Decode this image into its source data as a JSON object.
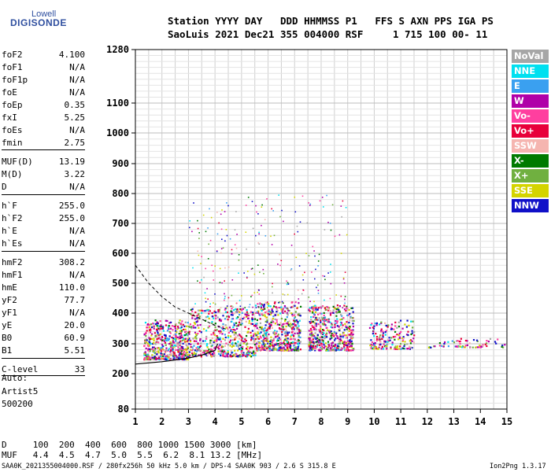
{
  "logo": {
    "line1": "Lowell",
    "line2": "DIGISONDE"
  },
  "header": {
    "row1": "Station YYYY DAY   DDD HHMMSS P1   FFS S AXN PPS IGA PS",
    "row2": "SaoLuis 2021 Dec21 355 004000 RSF     1 715 100 00- 11"
  },
  "params": [
    {
      "key": "foF2",
      "value": "4.100"
    },
    {
      "key": "foF1",
      "value": "N/A"
    },
    {
      "key": "foF1p",
      "value": "N/A"
    },
    {
      "key": "foE",
      "value": "N/A"
    },
    {
      "key": "foEp",
      "value": "0.35"
    },
    {
      "key": "fxI",
      "value": "5.25"
    },
    {
      "key": "foEs",
      "value": "N/A"
    },
    {
      "key": "fmin",
      "value": "2.75"
    },
    {
      "key": "MUF(D)",
      "value": "13.19"
    },
    {
      "key": "M(D)",
      "value": "3.22"
    },
    {
      "key": "D",
      "value": "N/A"
    },
    {
      "key": "h`F",
      "value": "255.0"
    },
    {
      "key": "h`F2",
      "value": "255.0"
    },
    {
      "key": "h`E",
      "value": "N/A"
    },
    {
      "key": "h`Es",
      "value": "N/A"
    },
    {
      "key": "hmF2",
      "value": "308.2"
    },
    {
      "key": "hmF1",
      "value": "N/A"
    },
    {
      "key": "hmE",
      "value": "110.0"
    },
    {
      "key": "yF2",
      "value": "77.7"
    },
    {
      "key": "yF1",
      "value": "N/A"
    },
    {
      "key": "yE",
      "value": "20.0"
    },
    {
      "key": "B0",
      "value": "60.9"
    },
    {
      "key": "B1",
      "value": "5.51"
    },
    {
      "key": "C-level",
      "value": "33"
    }
  ],
  "auto": {
    "line1": "Auto:",
    "line2": "Artist5",
    "line3": "500200"
  },
  "legend": [
    {
      "label": "NoVal",
      "color": "#a6a6a6"
    },
    {
      "label": "NNE",
      "color": "#00e0f0"
    },
    {
      "label": "E",
      "color": "#3aa0f0"
    },
    {
      "label": "W",
      "color": "#b000a8"
    },
    {
      "label": "Vo-",
      "color": "#ff3f9f"
    },
    {
      "label": "Vo+",
      "color": "#e8003a"
    },
    {
      "label": "SSW",
      "color": "#f5b5b0"
    },
    {
      "label": "X-",
      "color": "#007a00"
    },
    {
      "label": "X+",
      "color": "#70b040"
    },
    {
      "label": "SSE",
      "color": "#d4d400"
    },
    {
      "label": "NNW",
      "color": "#1010c8"
    }
  ],
  "footer": {
    "d_row": "D     100  200  400  600  800 1000 1500 3000 [km]",
    "muf_row": "MUF   4.4  4.5  4.7  5.0  5.5  6.2  8.1 13.2 [MHz]",
    "file_info": "SAA0K_2021355004000.RSF / 280fx256h 50 kHz 5.0 km / DPS-4 SAA0K 903 / 2.6 S 315.8 E",
    "version": "Ion2Png 1.3.17"
  },
  "chart_data": {
    "type": "scatter",
    "title": "",
    "xlabel": "",
    "ylabel": "",
    "xlim": [
      1,
      15
    ],
    "ylim": [
      80,
      1280
    ],
    "x_ticks": [
      1,
      2,
      3,
      4,
      5,
      6,
      7,
      8,
      9,
      10,
      11,
      12,
      13,
      14,
      15
    ],
    "y_ticks": [
      80,
      200,
      300,
      400,
      500,
      600,
      700,
      800,
      900,
      1000,
      1100,
      1280
    ],
    "y_scale": "nonlinear (ionogram virtual height)",
    "grid": true,
    "legend_placement": "right",
    "echo_clusters": [
      {
        "x_range": [
          1.3,
          3.0
        ],
        "y_range": [
          250,
          380
        ],
        "density": "high"
      },
      {
        "x_range": [
          3.0,
          5.5
        ],
        "y_range": [
          260,
          420
        ],
        "density": "high"
      },
      {
        "x_range": [
          5.5,
          7.2
        ],
        "y_range": [
          280,
          440
        ],
        "density": "high"
      },
      {
        "x_range": [
          7.5,
          9.2
        ],
        "y_range": [
          280,
          430
        ],
        "density": "high"
      },
      {
        "x_range": [
          9.8,
          11.5
        ],
        "y_range": [
          285,
          380
        ],
        "density": "medium"
      },
      {
        "x_range": [
          12.0,
          14.9
        ],
        "y_range": [
          290,
          320
        ],
        "density": "low"
      }
    ],
    "profile_curve": [
      [
        1.0,
        232
      ],
      [
        1.5,
        236
      ],
      [
        2.0,
        240
      ],
      [
        2.5,
        246
      ],
      [
        3.0,
        252
      ],
      [
        3.5,
        262
      ],
      [
        4.0,
        278
      ],
      [
        4.1,
        300
      ]
    ],
    "muf_curve": [
      [
        1.0,
        560
      ],
      [
        1.5,
        500
      ],
      [
        2.0,
        455
      ],
      [
        2.5,
        420
      ],
      [
        3.0,
        400
      ],
      [
        3.5,
        380
      ],
      [
        4.0,
        360
      ],
      [
        4.5,
        345
      ]
    ]
  }
}
